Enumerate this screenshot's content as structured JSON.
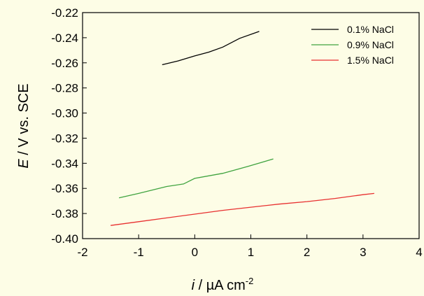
{
  "chart_data": {
    "type": "line",
    "xlabel": {
      "italic": "i",
      "rest": " / µA cm",
      "sup": "-2"
    },
    "ylabel": {
      "italic": "E",
      "rest": " / V vs. SCE"
    },
    "xlim": [
      -2,
      4
    ],
    "ylim": [
      -0.4,
      -0.22
    ],
    "xticks": [
      "-2",
      "-1",
      "0",
      "1",
      "2",
      "3",
      "4"
    ],
    "yticks": [
      "-0.40",
      "-0.38",
      "-0.36",
      "-0.34",
      "-0.32",
      "-0.30",
      "-0.28",
      "-0.26",
      "-0.24",
      "-0.22"
    ],
    "grid": false,
    "legend_position": "top-right",
    "series": [
      {
        "name": "0.1% NaCl",
        "color": "#000000",
        "points": [
          [
            -0.58,
            -0.2615
          ],
          [
            -0.3,
            -0.2585
          ],
          [
            0.0,
            -0.2545
          ],
          [
            0.25,
            -0.2515
          ],
          [
            0.5,
            -0.2475
          ],
          [
            0.8,
            -0.2405
          ],
          [
            1.15,
            -0.235
          ]
        ]
      },
      {
        "name": "0.9% NaCl",
        "color": "#3fa33f",
        "points": [
          [
            -1.35,
            -0.3675
          ],
          [
            -1.0,
            -0.364
          ],
          [
            -0.5,
            -0.3585
          ],
          [
            -0.2,
            -0.3565
          ],
          [
            0.0,
            -0.352
          ],
          [
            0.5,
            -0.348
          ],
          [
            0.95,
            -0.3425
          ],
          [
            1.4,
            -0.3365
          ]
        ]
      },
      {
        "name": "1.5% NaCl",
        "color": "#e83030",
        "points": [
          [
            -1.5,
            -0.3895
          ],
          [
            -1.0,
            -0.3865
          ],
          [
            -0.5,
            -0.3835
          ],
          [
            0.0,
            -0.3805
          ],
          [
            0.5,
            -0.3775
          ],
          [
            1.0,
            -0.375
          ],
          [
            1.5,
            -0.3725
          ],
          [
            2.0,
            -0.3705
          ],
          [
            2.5,
            -0.368
          ],
          [
            3.0,
            -0.365
          ],
          [
            3.2,
            -0.364
          ]
        ]
      }
    ]
  }
}
